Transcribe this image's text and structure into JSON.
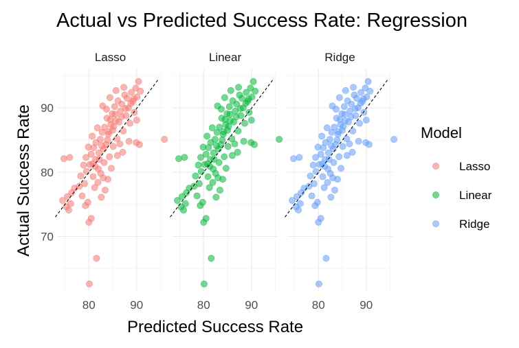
{
  "chart_data": {
    "type": "scatter",
    "title": "Actual vs Predicted Success Rate: Regression",
    "xlabel": "Predicted Success Rate",
    "ylabel": "Actual Success Rate",
    "xlim": [
      73.5,
      95.5
    ],
    "ylim": [
      61.5,
      96.0
    ],
    "x_ticks": [
      80,
      90
    ],
    "y_ticks": [
      70,
      80,
      90
    ],
    "reference_line": "y = x (dashed)",
    "legend": {
      "title": "Model",
      "position": "right",
      "entries": [
        {
          "label": "Lasso",
          "color": "#F8766D"
        },
        {
          "label": "Linear",
          "color": "#00BA38"
        },
        {
          "label": "Ridge",
          "color": "#619CFF"
        }
      ]
    },
    "facets": [
      {
        "name": "Lasso",
        "color": "#F8766D"
      },
      {
        "name": "Linear",
        "color": "#00BA38"
      },
      {
        "name": "Ridge",
        "color": "#619CFF"
      }
    ],
    "series_points": [
      [
        74.5,
        75.6
      ],
      [
        75.3,
        74.6
      ],
      [
        75.8,
        74.1
      ],
      [
        75.5,
        76.2
      ],
      [
        76.4,
        76.8
      ],
      [
        77.0,
        77.5
      ],
      [
        76.2,
        75.1
      ],
      [
        74.8,
        82.1
      ],
      [
        76.0,
        82.3
      ],
      [
        78.0,
        77.8
      ],
      [
        78.3,
        79.4
      ],
      [
        78.6,
        76.3
      ],
      [
        79.1,
        78.2
      ],
      [
        79.5,
        80.1
      ],
      [
        79.3,
        74.8
      ],
      [
        79.8,
        75.3
      ],
      [
        80.0,
        72.2
      ],
      [
        80.5,
        72.8
      ],
      [
        80.2,
        81.2
      ],
      [
        80.5,
        82.8
      ],
      [
        80.9,
        79.3
      ],
      [
        81.3,
        80.9
      ],
      [
        81.0,
        83.8
      ],
      [
        81.5,
        84.6
      ],
      [
        81.2,
        77.6
      ],
      [
        81.9,
        78.4
      ],
      [
        81.6,
        66.6
      ],
      [
        80.1,
        62.6
      ],
      [
        82.2,
        82.0
      ],
      [
        82.4,
        85.1
      ],
      [
        82.8,
        86.2
      ],
      [
        82.0,
        80.5
      ],
      [
        83.1,
        83.6
      ],
      [
        83.3,
        87.0
      ],
      [
        83.6,
        84.3
      ],
      [
        83.0,
        79.1
      ],
      [
        83.8,
        88.4
      ],
      [
        84.1,
        85.9
      ],
      [
        84.3,
        82.4
      ],
      [
        84.6,
        87.4
      ],
      [
        84.9,
        89.1
      ],
      [
        85.1,
        84.0
      ],
      [
        85.4,
        90.2
      ],
      [
        85.0,
        86.5
      ],
      [
        85.6,
        88.0
      ],
      [
        85.9,
        85.2
      ],
      [
        86.1,
        91.1
      ],
      [
        86.3,
        87.8
      ],
      [
        86.6,
        89.5
      ],
      [
        86.9,
        90.6
      ],
      [
        87.2,
        86.4
      ],
      [
        87.5,
        92.0
      ],
      [
        87.8,
        88.8
      ],
      [
        88.0,
        91.5
      ],
      [
        88.3,
        90.0
      ],
      [
        88.6,
        87.6
      ],
      [
        88.9,
        92.4
      ],
      [
        89.2,
        91.0
      ],
      [
        89.5,
        89.3
      ],
      [
        89.8,
        93.1
      ],
      [
        90.1,
        91.7
      ],
      [
        90.4,
        94.1
      ],
      [
        90.0,
        88.1
      ],
      [
        90.8,
        92.6
      ],
      [
        90.6,
        84.3
      ],
      [
        89.9,
        84.6
      ],
      [
        95.8,
        85.1
      ],
      [
        88.4,
        84.8
      ],
      [
        87.1,
        83.1
      ],
      [
        86.0,
        82.6
      ],
      [
        84.7,
        80.6
      ],
      [
        84.0,
        78.9
      ],
      [
        83.4,
        77.2
      ],
      [
        82.6,
        76.1
      ],
      [
        82.9,
        90.3
      ],
      [
        84.4,
        91.6
      ],
      [
        83.7,
        89.8
      ],
      [
        85.7,
        92.7
      ],
      [
        87.3,
        93.2
      ],
      [
        81.8,
        86.9
      ],
      [
        80.7,
        85.6
      ],
      [
        79.9,
        83.9
      ],
      [
        79.4,
        82.3
      ],
      [
        78.9,
        81.1
      ],
      [
        86.5,
        84.4
      ],
      [
        85.2,
        87.1
      ],
      [
        84.2,
        86.3
      ],
      [
        83.9,
        85.0
      ],
      [
        82.7,
        84.1
      ],
      [
        82.1,
        83.0
      ],
      [
        81.4,
        82.0
      ],
      [
        80.8,
        81.3
      ],
      [
        86.8,
        88.6
      ],
      [
        87.7,
        89.9
      ],
      [
        88.8,
        90.7
      ],
      [
        89.4,
        91.4
      ],
      [
        85.5,
        89.0
      ],
      [
        84.5,
        88.2
      ],
      [
        83.2,
        81.5
      ],
      [
        82.5,
        79.8
      ]
    ]
  }
}
